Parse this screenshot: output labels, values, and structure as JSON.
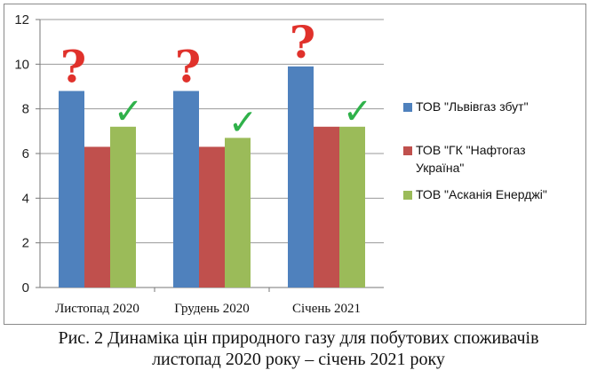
{
  "chart_data": {
    "type": "bar",
    "categories": [
      "Листопад 2020",
      "Грудень 2020",
      "Січень 2021"
    ],
    "series": [
      {
        "name": "ТОВ \"Львівгаз збут\"",
        "values": [
          8.8,
          8.8,
          9.9
        ],
        "color": "#4f81bd"
      },
      {
        "name": "ТОВ \"ГК \"Нафтогаз Україна\"",
        "values": [
          6.3,
          6.3,
          7.2
        ],
        "color": "#c0504d"
      },
      {
        "name": "ТОВ \"Асканія Енерджі\"",
        "values": [
          7.2,
          6.7,
          7.2
        ],
        "color": "#9bbb59"
      }
    ],
    "ylim": [
      0,
      12
    ],
    "yticks": [
      "0",
      "2",
      "4",
      "6",
      "8",
      "10",
      "12"
    ],
    "grid": true,
    "legend_position": "right",
    "legend_lines": [
      [
        "ТОВ \"Львівгаз збут\""
      ],
      [
        "ТОВ \"ГК \"Нафтогаз",
        "Україна\""
      ],
      [
        "ТОВ \"Асканія Енерджі\""
      ]
    ],
    "annotations": {
      "question_mark": "?",
      "check_mark": "✓",
      "question_series": 0,
      "check_series": 2
    }
  },
  "caption": {
    "line1": "Рис. 2 Динаміка цін природного газу для побутових споживачів",
    "line2": "листопад 2020 року – січень 2021 року"
  }
}
